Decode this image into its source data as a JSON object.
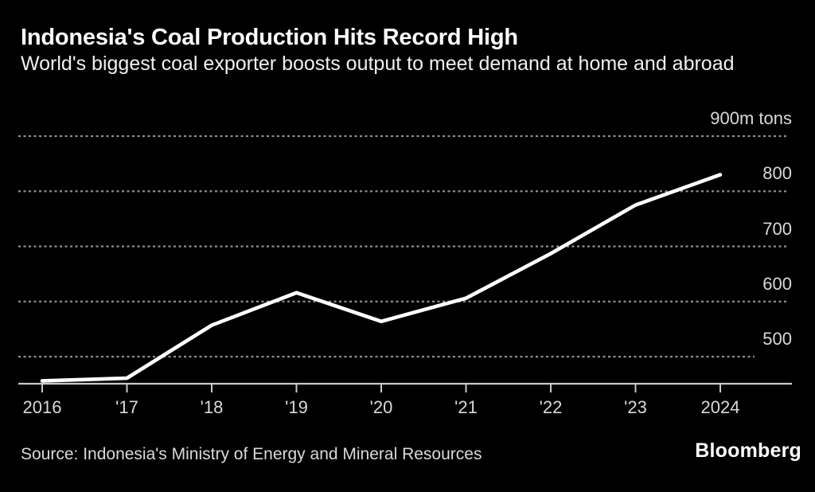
{
  "header": {
    "title": "Indonesia's Coal Production Hits Record High",
    "subtitle": "World's biggest coal exporter boosts output to meet demand at home and abroad"
  },
  "footer": {
    "source": "Source: Indonesia's Ministry of Energy and Mineral Resources",
    "brand": "Bloomberg"
  },
  "colors": {
    "background": "#000000",
    "line": "#ffffff",
    "grid": "#8f8f8f",
    "axis": "#c9c9c9",
    "label": "#d9d9d9"
  },
  "chart_data": {
    "type": "line",
    "title": "Indonesia's Coal Production Hits Record High",
    "subtitle": "World's biggest coal exporter boosts output to meet demand at home and abroad",
    "series_name": "Indonesia annual coal production",
    "unit": "m tons",
    "categories": [
      "2016",
      "'17",
      "'18",
      "'19",
      "'20",
      "'21",
      "'22",
      "'23",
      "2024"
    ],
    "values": [
      456,
      461,
      557,
      616,
      564,
      606,
      687,
      775,
      830
    ],
    "y_ticks": [
      {
        "value": 900,
        "label": "900m tons"
      },
      {
        "value": 800,
        "label": "800"
      },
      {
        "value": 700,
        "label": "700"
      },
      {
        "value": 600,
        "label": "600"
      },
      {
        "value": 500,
        "label": "500"
      }
    ],
    "ylim": [
      450,
      900
    ],
    "grid": true,
    "legend": false,
    "source": "Source: Indonesia's Ministry of Energy and Mineral Resources"
  }
}
